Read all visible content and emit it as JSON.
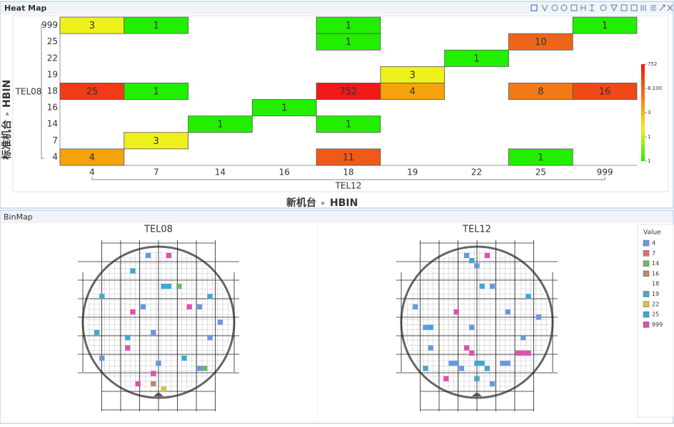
{
  "heatmap": {
    "title": "Heat Map",
    "x_categories": [
      "4",
      "7",
      "14",
      "16",
      "18",
      "19",
      "22",
      "25",
      "999"
    ],
    "y_categories": [
      "4",
      "7",
      "14",
      "16",
      "18",
      "19",
      "22",
      "25",
      "999"
    ],
    "x_group": "TEL12",
    "y_group": "TEL08",
    "x_title": "新机台",
    "x_title_sep": "»",
    "x_field": "HBIN",
    "y_title": "标准机台",
    "y_title_sep": "»",
    "y_field": "HBIN",
    "cells": [
      {
        "x": "4",
        "y": "999",
        "value": 3,
        "color": "#eef01c"
      },
      {
        "x": "7",
        "y": "999",
        "value": 1,
        "color": "#22ee00"
      },
      {
        "x": "18",
        "y": "999",
        "value": 1,
        "color": "#22ee00"
      },
      {
        "x": "999",
        "y": "999",
        "value": 1,
        "color": "#22ee00"
      },
      {
        "x": "18",
        "y": "25",
        "value": 1,
        "color": "#22ee00"
      },
      {
        "x": "25",
        "y": "25",
        "value": 10,
        "color": "#f06418"
      },
      {
        "x": "22",
        "y": "22",
        "value": 1,
        "color": "#22ee00"
      },
      {
        "x": "19",
        "y": "19",
        "value": 3,
        "color": "#eef01c"
      },
      {
        "x": "4",
        "y": "18",
        "value": 25,
        "color": "#f03a18"
      },
      {
        "x": "7",
        "y": "18",
        "value": 1,
        "color": "#22ee00"
      },
      {
        "x": "18",
        "y": "18",
        "value": 752,
        "color": "#f01818"
      },
      {
        "x": "19",
        "y": "18",
        "value": 4,
        "color": "#f5a30d"
      },
      {
        "x": "25",
        "y": "18",
        "value": 8,
        "color": "#f07a18"
      },
      {
        "x": "999",
        "y": "18",
        "value": 16,
        "color": "#f04818"
      },
      {
        "x": "16",
        "y": "16",
        "value": 1,
        "color": "#22ee00"
      },
      {
        "x": "14",
        "y": "14",
        "value": 1,
        "color": "#22ee00"
      },
      {
        "x": "18",
        "y": "14",
        "value": 1,
        "color": "#22ee00"
      },
      {
        "x": "7",
        "y": "7",
        "value": 3,
        "color": "#eef01c"
      },
      {
        "x": "4",
        "y": "4",
        "value": 4,
        "color": "#f5a30d"
      },
      {
        "x": "18",
        "y": "4",
        "value": 11,
        "color": "#f05a18"
      },
      {
        "x": "25",
        "y": "4",
        "value": 1,
        "color": "#22ee00"
      }
    ],
    "colorbar_labels": [
      "752",
      "8.100",
      "3",
      "1",
      "1"
    ],
    "colorbar_colors": [
      "#f01818",
      "#f07a18",
      "#eef01c",
      "#22ee00"
    ]
  },
  "binmap": {
    "title": "BinMap",
    "legend_title": "Value",
    "legend": [
      {
        "name": "4",
        "color": "#6a98e0"
      },
      {
        "name": "7",
        "color": "#e06a78"
      },
      {
        "name": "14",
        "color": "#6ab86a"
      },
      {
        "name": "16",
        "color": "#b88a6a"
      },
      {
        "name": "18",
        "color": null
      },
      {
        "name": "19",
        "color": "#4aa6c8"
      },
      {
        "name": "22",
        "color": "#cfc24a"
      },
      {
        "name": "25",
        "color": "#3aa8d8"
      },
      {
        "name": "999",
        "color": "#e050b0"
      }
    ],
    "wafers": [
      {
        "name": "TEL08",
        "dies": [
          {
            "col": -2,
            "row": -13,
            "bin": "4"
          },
          {
            "col": 2,
            "row": -13,
            "bin": "999"
          },
          {
            "col": -5,
            "row": -10,
            "bin": "25"
          },
          {
            "col": 1,
            "row": -7,
            "bin": "25"
          },
          {
            "col": 2,
            "row": -7,
            "bin": "25"
          },
          {
            "col": 4,
            "row": -7,
            "bin": "14"
          },
          {
            "col": -11,
            "row": -5,
            "bin": "19"
          },
          {
            "col": 10,
            "row": -5,
            "bin": "25"
          },
          {
            "col": -3,
            "row": -3,
            "bin": "4"
          },
          {
            "col": -5,
            "row": -2,
            "bin": "999"
          },
          {
            "col": 6,
            "row": -3,
            "bin": "999"
          },
          {
            "col": 8,
            "row": -3,
            "bin": "4"
          },
          {
            "col": 12,
            "row": 0,
            "bin": "4"
          },
          {
            "col": -12,
            "row": 2,
            "bin": "19"
          },
          {
            "col": -6,
            "row": 3,
            "bin": "25"
          },
          {
            "col": -1,
            "row": 2,
            "bin": "4"
          },
          {
            "col": 10,
            "row": 3,
            "bin": "4"
          },
          {
            "col": -6,
            "row": 5,
            "bin": "999"
          },
          {
            "col": -11,
            "row": 7,
            "bin": "4"
          },
          {
            "col": 5,
            "row": 7,
            "bin": "25"
          },
          {
            "col": 0,
            "row": 8,
            "bin": "4"
          },
          {
            "col": 8,
            "row": 9,
            "bin": "4"
          },
          {
            "col": 9,
            "row": 9,
            "bin": "14"
          },
          {
            "col": -1,
            "row": 10,
            "bin": "999"
          },
          {
            "col": -4,
            "row": 12,
            "bin": "999"
          },
          {
            "col": -1,
            "row": 12,
            "bin": "16"
          },
          {
            "col": 1,
            "row": 13,
            "bin": "22"
          }
        ]
      },
      {
        "name": "TEL12",
        "dies": [
          {
            "col": -2,
            "row": -13,
            "bin": "4"
          },
          {
            "col": 2,
            "row": -13,
            "bin": "999"
          },
          {
            "col": -1,
            "row": -12,
            "bin": "25"
          },
          {
            "col": 0,
            "row": -11,
            "bin": "4"
          },
          {
            "col": 1,
            "row": -7,
            "bin": "25"
          },
          {
            "col": 3,
            "row": -7,
            "bin": "4"
          },
          {
            "col": 10,
            "row": -5,
            "bin": "25"
          },
          {
            "col": -12,
            "row": -3,
            "bin": "4"
          },
          {
            "col": -4,
            "row": -2,
            "bin": "999"
          },
          {
            "col": 6,
            "row": -2,
            "bin": "4"
          },
          {
            "col": 12,
            "row": -1,
            "bin": "4"
          },
          {
            "col": -10,
            "row": 1,
            "bin": "4"
          },
          {
            "col": -9,
            "row": 1,
            "bin": "25"
          },
          {
            "col": -1,
            "row": 1,
            "bin": "4"
          },
          {
            "col": 9,
            "row": 3,
            "bin": "4"
          },
          {
            "col": -9,
            "row": 5,
            "bin": "4"
          },
          {
            "col": -2,
            "row": 5,
            "bin": "999"
          },
          {
            "col": -1,
            "row": 6,
            "bin": "999"
          },
          {
            "col": 8,
            "row": 6,
            "bin": "999"
          },
          {
            "col": 9,
            "row": 6,
            "bin": "999"
          },
          {
            "col": 10,
            "row": 6,
            "bin": "999"
          },
          {
            "col": -5,
            "row": 8,
            "bin": "4"
          },
          {
            "col": -4,
            "row": 8,
            "bin": "4"
          },
          {
            "col": 0,
            "row": 8,
            "bin": "25"
          },
          {
            "col": 1,
            "row": 8,
            "bin": "25"
          },
          {
            "col": 5,
            "row": 8,
            "bin": "4"
          },
          {
            "col": 6,
            "row": 8,
            "bin": "4"
          },
          {
            "col": -10,
            "row": 9,
            "bin": "19"
          },
          {
            "col": -3,
            "row": 9,
            "bin": "4"
          },
          {
            "col": 2,
            "row": 9,
            "bin": "19"
          },
          {
            "col": -6,
            "row": 11,
            "bin": "999"
          },
          {
            "col": 0,
            "row": 11,
            "bin": "19"
          },
          {
            "col": 3,
            "row": 12,
            "bin": "4"
          }
        ]
      }
    ]
  }
}
